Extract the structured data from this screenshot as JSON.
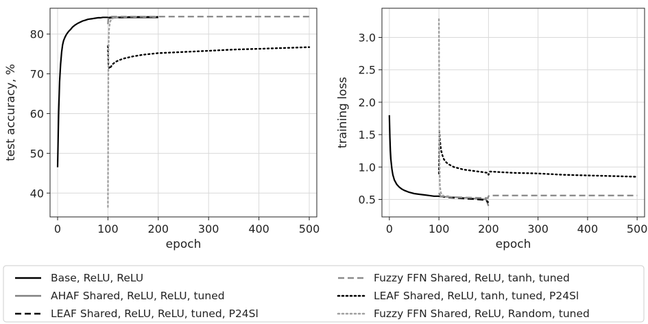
{
  "chart_data": [
    {
      "type": "line",
      "xlabel": "epoch",
      "ylabel": "test accuracy, %",
      "xlim": [
        -15,
        515
      ],
      "ylim": [
        34,
        86.5
      ],
      "xticks": [
        0,
        100,
        200,
        300,
        400,
        500
      ],
      "yticks": [
        40,
        50,
        60,
        70,
        80
      ],
      "grid": true,
      "series": [
        {
          "name": "Base, ReLU, ReLU",
          "color": "#000000",
          "style": "solid",
          "x": [
            0,
            2,
            4,
            6,
            8,
            10,
            12,
            15,
            18,
            22,
            26,
            30,
            35,
            40,
            45,
            50,
            55,
            60,
            65,
            70,
            75,
            80,
            85,
            90,
            95,
            100
          ],
          "y": [
            46.5,
            60,
            68,
            72.5,
            75.5,
            77.3,
            78.4,
            79.3,
            80.0,
            80.7,
            81.2,
            81.8,
            82.3,
            82.7,
            83.0,
            83.3,
            83.5,
            83.7,
            83.8,
            83.9,
            84.0,
            84.1,
            84.1,
            84.2,
            84.2,
            84.2
          ]
        },
        {
          "name": "AHAF Shared, ReLU, ReLU, tuned",
          "color": "#808080",
          "style": "solid",
          "x": [
            100,
            102,
            105,
            110,
            120,
            150,
            200
          ],
          "y": [
            84.0,
            83.9,
            84.0,
            84.1,
            84.1,
            84.1,
            84.1
          ]
        },
        {
          "name": "LEAF Shared, ReLU, ReLU, tuned, P24Sl",
          "color": "#000000",
          "style": "dashed",
          "x": [
            100,
            105,
            110,
            120,
            150,
            200
          ],
          "y": [
            84.1,
            84.2,
            84.2,
            84.2,
            84.3,
            84.3
          ]
        },
        {
          "name": "Fuzzy FFN Shared, ReLU, tanh, tuned",
          "color": "#8c8c8c",
          "style": "dashed",
          "x": [
            100,
            101,
            103,
            110,
            150,
            200,
            250,
            300,
            350,
            400,
            450,
            500
          ],
          "y": [
            82.5,
            84.2,
            84.4,
            84.4,
            84.4,
            84.4,
            84.4,
            84.4,
            84.4,
            84.4,
            84.4,
            84.4
          ]
        },
        {
          "name": "LEAF Shared, ReLU, tanh, tuned, P24Sl",
          "color": "#000000",
          "style": "dotted",
          "x": [
            100,
            101,
            103,
            106,
            110,
            115,
            120,
            130,
            140,
            150,
            170,
            200,
            250,
            300,
            350,
            400,
            450,
            500
          ],
          "y": [
            77.0,
            72.0,
            71.3,
            71.8,
            72.5,
            73.0,
            73.3,
            73.8,
            74.1,
            74.4,
            74.8,
            75.2,
            75.5,
            75.8,
            76.1,
            76.3,
            76.5,
            76.7
          ]
        },
        {
          "name": "Fuzzy FFN Shared, ReLU, Random, tuned",
          "color": "#a0a0a0",
          "style": "dotted",
          "x": [
            100,
            100.5,
            101,
            102,
            104,
            107,
            110,
            115,
            120
          ],
          "y": [
            36.5,
            58,
            75,
            81,
            83,
            83.8,
            84.0,
            84.1,
            84.1
          ]
        }
      ]
    },
    {
      "type": "line",
      "xlabel": "epoch",
      "ylabel": "training loss",
      "xlim": [
        -15,
        515
      ],
      "ylim": [
        0.23,
        3.45
      ],
      "xticks": [
        0,
        100,
        200,
        300,
        400,
        500
      ],
      "yticks": [
        0.5,
        1.0,
        1.5,
        2.0,
        2.5,
        3.0
      ],
      "grid": true,
      "series": [
        {
          "name": "Base, ReLU, ReLU",
          "color": "#000000",
          "style": "solid",
          "x": [
            0,
            1,
            2,
            3,
            5,
            7,
            10,
            15,
            20,
            25,
            30,
            40,
            50,
            60,
            70,
            80,
            90,
            100
          ],
          "y": [
            1.8,
            1.45,
            1.25,
            1.12,
            0.97,
            0.88,
            0.8,
            0.73,
            0.69,
            0.66,
            0.64,
            0.61,
            0.59,
            0.58,
            0.57,
            0.56,
            0.55,
            0.55
          ]
        },
        {
          "name": "AHAF Shared, ReLU, ReLU, tuned",
          "color": "#808080",
          "style": "solid",
          "x": [
            100,
            105,
            110,
            120,
            140,
            160,
            180,
            195,
            200
          ],
          "y": [
            0.55,
            0.55,
            0.54,
            0.54,
            0.53,
            0.52,
            0.51,
            0.5,
            0.4
          ]
        },
        {
          "name": "LEAF Shared, ReLU, ReLU, tuned, P24Sl",
          "color": "#000000",
          "style": "dashed",
          "x": [
            100,
            110,
            120,
            140,
            160,
            180,
            195,
            200
          ],
          "y": [
            0.55,
            0.54,
            0.53,
            0.52,
            0.51,
            0.5,
            0.49,
            0.45
          ]
        },
        {
          "name": "Fuzzy FFN Shared, ReLU, tanh, tuned",
          "color": "#8c8c8c",
          "style": "dashed",
          "x": [
            100,
            103,
            110,
            150,
            199,
            200,
            202,
            250,
            300,
            350,
            400,
            450,
            500
          ],
          "y": [
            0.6,
            0.55,
            0.54,
            0.53,
            0.52,
            0.55,
            0.56,
            0.56,
            0.56,
            0.56,
            0.56,
            0.56,
            0.56
          ]
        },
        {
          "name": "LEAF Shared, ReLU, tanh, tuned, P24Sl",
          "color": "#000000",
          "style": "dotted",
          "x": [
            100,
            101,
            102,
            104,
            107,
            110,
            115,
            120,
            130,
            140,
            150,
            170,
            199,
            200,
            203,
            250,
            300,
            350,
            400,
            450,
            500
          ],
          "y": [
            0.9,
            1.55,
            1.42,
            1.27,
            1.18,
            1.12,
            1.07,
            1.04,
            1.0,
            0.98,
            0.96,
            0.94,
            0.91,
            0.88,
            0.93,
            0.91,
            0.9,
            0.88,
            0.87,
            0.86,
            0.85
          ]
        },
        {
          "name": "Fuzzy FFN Shared, ReLU, Random, tuned",
          "color": "#a0a0a0",
          "style": "dotted",
          "x": [
            100,
            100.5,
            101,
            102,
            104,
            107,
            110,
            115,
            120
          ],
          "y": [
            3.28,
            2.2,
            1.2,
            0.7,
            0.6,
            0.57,
            0.55,
            0.55,
            0.55
          ]
        }
      ]
    }
  ],
  "legend": {
    "placement": "bottom",
    "entries": [
      "Base, ReLU, ReLU",
      "AHAF Shared, ReLU, ReLU, tuned",
      "LEAF Shared, ReLU, ReLU, tuned, P24Sl",
      "Fuzzy FFN Shared, ReLU, tanh, tuned",
      "LEAF Shared, ReLU, tanh, tuned, P24Sl",
      "Fuzzy FFN Shared, ReLU, Random, tuned"
    ]
  }
}
